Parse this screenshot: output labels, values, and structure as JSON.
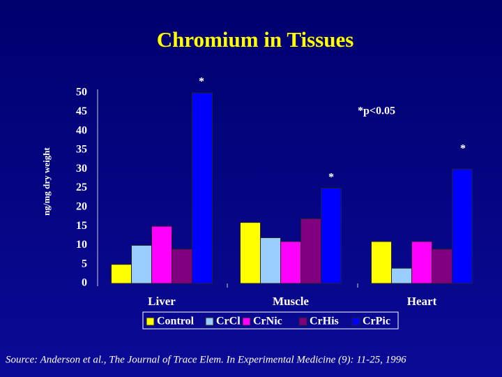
{
  "chart_data": {
    "type": "bar",
    "title": "Chromium in Tissues",
    "y_label": "ng/mg dry weight",
    "categories": [
      "Liver",
      "Muscle",
      "Heart"
    ],
    "series": [
      {
        "name": "Control",
        "color": "#ffff00",
        "values": [
          5,
          16,
          11
        ]
      },
      {
        "name": "CrCl",
        "color": "#99ccff",
        "values": [
          10,
          12,
          4
        ]
      },
      {
        "name": "CrNic",
        "color": "#ff00ff",
        "values": [
          15,
          11,
          11
        ]
      },
      {
        "name": "CrHis",
        "color": "#800080",
        "values": [
          9,
          17,
          9
        ]
      },
      {
        "name": "CrPic",
        "color": "#0000ff",
        "values": [
          50,
          25,
          30
        ]
      }
    ],
    "ylim": [
      0,
      50
    ],
    "yticks": [
      0,
      5,
      10,
      15,
      20,
      25,
      30,
      35,
      40,
      45,
      50
    ],
    "grid": false,
    "annotations": [
      "*",
      "*",
      "*",
      "*p<0.05"
    ],
    "source": "Source: Anderson et al., The Journal of Trace Elem. In Experimental Medicine (9): 11-25, 1996"
  }
}
